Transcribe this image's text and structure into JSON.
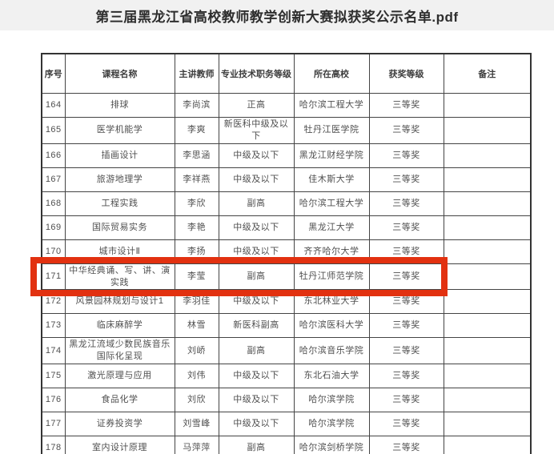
{
  "page": {
    "title": "第三届黑龙江省高校教师教学创新大赛拟获奖公示名单.pdf",
    "titlebar_bg": "#f1f1f1",
    "title_color": "#2e2e2e",
    "background": "#ffffff"
  },
  "table": {
    "headers": [
      "序号",
      "课程名称",
      "主讲教师",
      "专业技术职务等级",
      "所在高校",
      "获奖等级",
      "备注"
    ],
    "column_keys": [
      "no",
      "course",
      "teacher",
      "rank",
      "university",
      "award",
      "note"
    ],
    "border_color": "#444444",
    "text_color": "#4f4f4f",
    "highlighted_row_no": "171",
    "highlight_color": "#e23110",
    "rows": [
      {
        "no": "164",
        "course": "排球",
        "teacher": "李尚滨",
        "rank": "正高",
        "university": "哈尔滨工程大学",
        "award": "三等奖",
        "note": ""
      },
      {
        "no": "165",
        "course": "医学机能学",
        "teacher": "李爽",
        "rank": "新医科中级及以下",
        "university": "牡丹江医学院",
        "award": "三等奖",
        "note": ""
      },
      {
        "no": "166",
        "course": "插画设计",
        "teacher": "李思涵",
        "rank": "中级及以下",
        "university": "黑龙江财经学院",
        "award": "三等奖",
        "note": ""
      },
      {
        "no": "167",
        "course": "旅游地理学",
        "teacher": "李祥燕",
        "rank": "中级及以下",
        "university": "佳木斯大学",
        "award": "三等奖",
        "note": ""
      },
      {
        "no": "168",
        "course": "工程实践",
        "teacher": "李欣",
        "rank": "副高",
        "university": "哈尔滨工程大学",
        "award": "三等奖",
        "note": ""
      },
      {
        "no": "169",
        "course": "国际贸易实务",
        "teacher": "李艳",
        "rank": "中级及以下",
        "university": "黑龙江大学",
        "award": "三等奖",
        "note": ""
      },
      {
        "no": "170",
        "course": "城市设计Ⅱ",
        "teacher": "李扬",
        "rank": "中级及以下",
        "university": "齐齐哈尔大学",
        "award": "三等奖",
        "note": ""
      },
      {
        "no": "171",
        "course": "中华经典诵、写、讲、演实践",
        "teacher": "李莹",
        "rank": "副高",
        "university": "牡丹江师范学院",
        "award": "三等奖",
        "note": ""
      },
      {
        "no": "172",
        "course": "风景园林规划与设计1",
        "teacher": "李羽佳",
        "rank": "中级及以下",
        "university": "东北林业大学",
        "award": "三等奖",
        "note": ""
      },
      {
        "no": "173",
        "course": "临床麻醉学",
        "teacher": "林雪",
        "rank": "新医科副高",
        "university": "哈尔滨医科大学",
        "award": "三等奖",
        "note": ""
      },
      {
        "no": "174",
        "course": "黑龙江流域少数民族音乐国际化呈现",
        "teacher": "刘峤",
        "rank": "副高",
        "university": "哈尔滨音乐学院",
        "award": "三等奖",
        "note": ""
      },
      {
        "no": "175",
        "course": "激光原理与应用",
        "teacher": "刘伟",
        "rank": "中级及以下",
        "university": "东北石油大学",
        "award": "三等奖",
        "note": ""
      },
      {
        "no": "176",
        "course": "食品化学",
        "teacher": "刘欣",
        "rank": "中级及以下",
        "university": "哈尔滨学院",
        "award": "三等奖",
        "note": ""
      },
      {
        "no": "177",
        "course": "证券投资学",
        "teacher": "刘雪峰",
        "rank": "中级及以下",
        "university": "哈尔滨学院",
        "award": "三等奖",
        "note": ""
      },
      {
        "no": "178",
        "course": "室内设计原理",
        "teacher": "马萍萍",
        "rank": "副高",
        "university": "哈尔滨剑桥学院",
        "award": "三等奖",
        "note": ""
      }
    ]
  }
}
